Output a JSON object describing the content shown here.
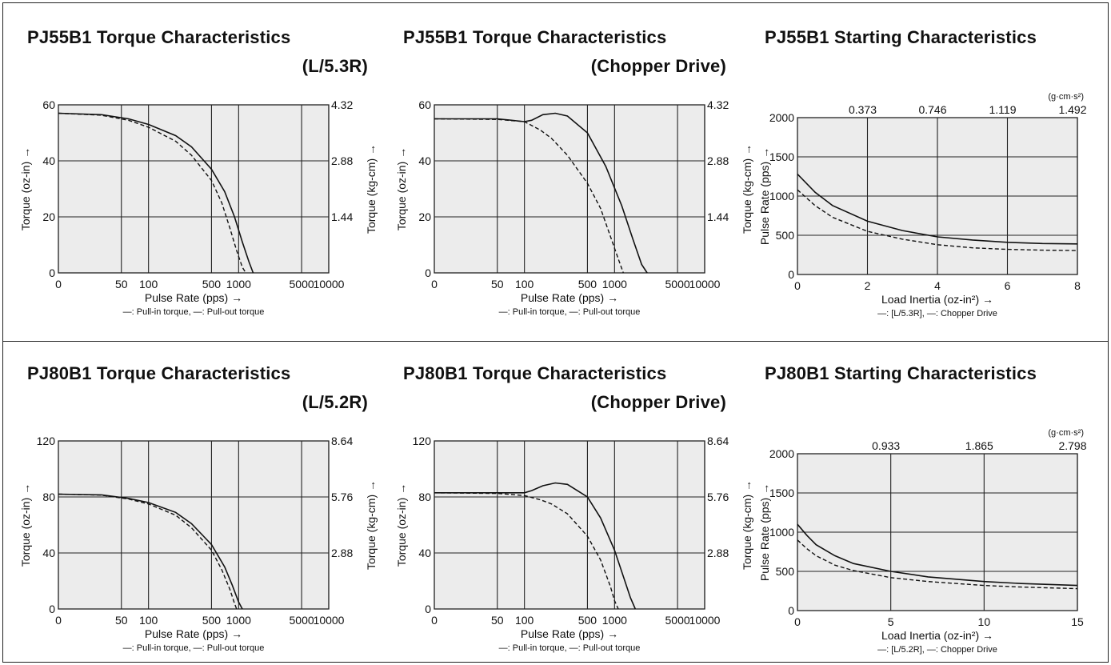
{
  "chart_data": [
    {
      "id": "pj55b1-lr",
      "type": "line",
      "title": "PJ55B1 Torque Characteristics",
      "subtitle": "(L/5.3R)",
      "xlabel": "Pulse Rate (pps) →",
      "ylabel": "Torque (oz-in) →",
      "y2label": "Torque (kg-cm) →",
      "xscale": "log",
      "xlim": [
        10,
        10000
      ],
      "ylim": [
        0,
        60
      ],
      "xgrid": [
        50,
        100,
        500,
        1000,
        5000,
        10000
      ],
      "xticklabels": [
        {
          "v": 10,
          "t": "0"
        },
        {
          "v": 50,
          "t": "50"
        },
        {
          "v": 100,
          "t": "100"
        },
        {
          "v": 500,
          "t": "500"
        },
        {
          "v": 1000,
          "t": "1000"
        },
        {
          "v": 5000,
          "t": "5000"
        },
        {
          "v": 10000,
          "t": "10000"
        }
      ],
      "yticks": [
        {
          "v": 0,
          "t": "0"
        },
        {
          "v": 20,
          "t": "20"
        },
        {
          "v": 40,
          "t": "40"
        },
        {
          "v": 60,
          "t": "60"
        }
      ],
      "y2ticks": [
        {
          "v": 20,
          "t": "1.44"
        },
        {
          "v": 40,
          "t": "2.88"
        },
        {
          "v": 60,
          "t": "4.32"
        }
      ],
      "legend": "—: Pull-in torque, —: Pull-out torque",
      "series": [
        {
          "name": "Pull-out torque",
          "style": "solid",
          "x": [
            10,
            30,
            60,
            100,
            200,
            300,
            500,
            700,
            900,
            1100,
            1300,
            1450
          ],
          "y": [
            57,
            56.5,
            55,
            53,
            49,
            45,
            37,
            29,
            20,
            11,
            4,
            0
          ]
        },
        {
          "name": "Pull-in torque",
          "style": "dashed",
          "x": [
            10,
            30,
            60,
            100,
            200,
            300,
            500,
            650,
            800,
            950,
            1100,
            1200
          ],
          "y": [
            57,
            56.3,
            54.5,
            52,
            47,
            42,
            33,
            25,
            16,
            8,
            2,
            0
          ]
        }
      ]
    },
    {
      "id": "pj55b1-chopper",
      "type": "line",
      "title": "PJ55B1 Torque Characteristics",
      "subtitle": "(Chopper Drive)",
      "xlabel": "Pulse Rate (pps) →",
      "ylabel": "Torque (oz-in) →",
      "y2label": "Torque (kg-cm) →",
      "xscale": "log",
      "xlim": [
        10,
        10000
      ],
      "ylim": [
        0,
        60
      ],
      "xgrid": [
        50,
        100,
        500,
        1000,
        5000,
        10000
      ],
      "xticklabels": [
        {
          "v": 10,
          "t": "0"
        },
        {
          "v": 50,
          "t": "50"
        },
        {
          "v": 100,
          "t": "100"
        },
        {
          "v": 500,
          "t": "500"
        },
        {
          "v": 1000,
          "t": "1000"
        },
        {
          "v": 5000,
          "t": "5000"
        },
        {
          "v": 10000,
          "t": "10000"
        }
      ],
      "yticks": [
        {
          "v": 0,
          "t": "0"
        },
        {
          "v": 20,
          "t": "20"
        },
        {
          "v": 40,
          "t": "40"
        },
        {
          "v": 60,
          "t": "60"
        }
      ],
      "y2ticks": [
        {
          "v": 20,
          "t": "1.44"
        },
        {
          "v": 40,
          "t": "2.88"
        },
        {
          "v": 60,
          "t": "4.32"
        }
      ],
      "legend": "—: Pull-in torque, —: Pull-out torque",
      "series": [
        {
          "name": "Pull-out torque",
          "style": "solid",
          "x": [
            10,
            50,
            100,
            120,
            160,
            220,
            300,
            500,
            800,
            1200,
            1600,
            2000,
            2300
          ],
          "y": [
            55,
            55,
            54,
            54.5,
            56.5,
            57,
            56,
            50,
            38,
            24,
            12,
            3,
            0
          ]
        },
        {
          "name": "Pull-in torque",
          "style": "dashed",
          "x": [
            10,
            50,
            100,
            150,
            200,
            300,
            500,
            700,
            900,
            1100,
            1250
          ],
          "y": [
            55,
            54.8,
            54,
            51,
            48,
            42,
            32,
            23,
            13,
            5,
            0
          ]
        }
      ]
    },
    {
      "id": "pj55b1-starting",
      "type": "line",
      "title": "PJ55B1 Starting Characteristics",
      "subtitle": "",
      "xlabel": "Load Inertia (oz-in²) →",
      "ylabel": "Pulse Rate (pps) →",
      "topunit": "(g·cm·s²)",
      "xscale": "linear",
      "xlim": [
        0,
        8
      ],
      "ylim": [
        0,
        2000
      ],
      "xgrid": [
        2,
        4,
        6,
        8
      ],
      "xticklabels": [
        {
          "v": 0,
          "t": "0"
        },
        {
          "v": 2,
          "t": "2"
        },
        {
          "v": 4,
          "t": "4"
        },
        {
          "v": 6,
          "t": "6"
        },
        {
          "v": 8,
          "t": "8"
        }
      ],
      "yticks": [
        {
          "v": 0,
          "t": "0"
        },
        {
          "v": 500,
          "t": "500"
        },
        {
          "v": 1000,
          "t": "1000"
        },
        {
          "v": 1500,
          "t": "1500"
        },
        {
          "v": 2000,
          "t": "2000"
        }
      ],
      "topticks": [
        {
          "v": 2,
          "t": "0.373"
        },
        {
          "v": 4,
          "t": "0.746"
        },
        {
          "v": 6,
          "t": "1.119"
        },
        {
          "v": 8,
          "t": "1.492"
        }
      ],
      "legend": "—: [L/5.3R], —: Chopper Drive",
      "series": [
        {
          "name": "Chopper Drive",
          "style": "solid",
          "x": [
            0,
            0.5,
            1,
            2,
            3,
            4,
            5,
            6,
            7,
            8
          ],
          "y": [
            1280,
            1050,
            880,
            680,
            560,
            480,
            440,
            410,
            395,
            390
          ]
        },
        {
          "name": "[L/5.3R]",
          "style": "dashed",
          "x": [
            0,
            0.5,
            1,
            2,
            3,
            4,
            5,
            6,
            7,
            8
          ],
          "y": [
            1080,
            880,
            730,
            550,
            450,
            380,
            340,
            320,
            310,
            305
          ]
        }
      ]
    },
    {
      "id": "pj80b1-lr",
      "type": "line",
      "title": "PJ80B1 Torque Characteristics",
      "subtitle": "(L/5.2R)",
      "xlabel": "Pulse Rate (pps) →",
      "ylabel": "Torque (oz-in) →",
      "y2label": "Torque (kg-cm) →",
      "xscale": "log",
      "xlim": [
        10,
        10000
      ],
      "ylim": [
        0,
        120
      ],
      "xgrid": [
        50,
        100,
        500,
        1000,
        5000,
        10000
      ],
      "xticklabels": [
        {
          "v": 10,
          "t": "0"
        },
        {
          "v": 50,
          "t": "50"
        },
        {
          "v": 100,
          "t": "100"
        },
        {
          "v": 500,
          "t": "500"
        },
        {
          "v": 1000,
          "t": "1000"
        },
        {
          "v": 5000,
          "t": "5000"
        },
        {
          "v": 10000,
          "t": "10000"
        }
      ],
      "yticks": [
        {
          "v": 0,
          "t": "0"
        },
        {
          "v": 40,
          "t": "40"
        },
        {
          "v": 80,
          "t": "80"
        },
        {
          "v": 120,
          "t": "120"
        }
      ],
      "y2ticks": [
        {
          "v": 40,
          "t": "2.88"
        },
        {
          "v": 80,
          "t": "5.76"
        },
        {
          "v": 120,
          "t": "8.64"
        }
      ],
      "legend": "—: Pull-in torque, —: Pull-out torque",
      "series": [
        {
          "name": "Pull-out torque",
          "style": "solid",
          "x": [
            10,
            30,
            60,
            100,
            200,
            300,
            500,
            700,
            850,
            1000,
            1100
          ],
          "y": [
            82,
            81.5,
            79,
            76,
            69,
            61,
            46,
            30,
            17,
            5,
            0
          ]
        },
        {
          "name": "Pull-in torque",
          "style": "dashed",
          "x": [
            10,
            30,
            60,
            100,
            200,
            300,
            500,
            650,
            800,
            900,
            950
          ],
          "y": [
            82,
            81.3,
            78.5,
            75,
            67,
            58,
            42,
            28,
            14,
            4,
            0
          ]
        }
      ]
    },
    {
      "id": "pj80b1-chopper",
      "type": "line",
      "title": "PJ80B1 Torque Characteristics",
      "subtitle": "(Chopper Drive)",
      "xlabel": "Pulse Rate (pps) →",
      "ylabel": "Torque (oz-in) →",
      "y2label": "Torque (kg-cm) →",
      "xscale": "log",
      "xlim": [
        10,
        10000
      ],
      "ylim": [
        0,
        120
      ],
      "xgrid": [
        50,
        100,
        500,
        1000,
        5000,
        10000
      ],
      "xticklabels": [
        {
          "v": 10,
          "t": "0"
        },
        {
          "v": 50,
          "t": "50"
        },
        {
          "v": 100,
          "t": "100"
        },
        {
          "v": 500,
          "t": "500"
        },
        {
          "v": 1000,
          "t": "1000"
        },
        {
          "v": 5000,
          "t": "5000"
        },
        {
          "v": 10000,
          "t": "10000"
        }
      ],
      "yticks": [
        {
          "v": 0,
          "t": "0"
        },
        {
          "v": 40,
          "t": "40"
        },
        {
          "v": 80,
          "t": "80"
        },
        {
          "v": 120,
          "t": "120"
        }
      ],
      "y2ticks": [
        {
          "v": 40,
          "t": "2.88"
        },
        {
          "v": 80,
          "t": "5.76"
        },
        {
          "v": 120,
          "t": "8.64"
        }
      ],
      "legend": "—: Pull-in torque, —: Pull-out torque",
      "series": [
        {
          "name": "Pull-out torque",
          "style": "solid",
          "x": [
            10,
            50,
            100,
            120,
            160,
            220,
            300,
            500,
            700,
            1000,
            1300,
            1500,
            1700
          ],
          "y": [
            83,
            83,
            83,
            84.5,
            88,
            90,
            89,
            80,
            65,
            42,
            20,
            8,
            0
          ]
        },
        {
          "name": "Pull-in torque",
          "style": "dashed",
          "x": [
            10,
            50,
            100,
            150,
            200,
            300,
            500,
            700,
            900,
            1000,
            1100
          ],
          "y": [
            83,
            82.5,
            81,
            78,
            75,
            68,
            52,
            35,
            16,
            6,
            0
          ]
        }
      ]
    },
    {
      "id": "pj80b1-starting",
      "type": "line",
      "title": "PJ80B1 Starting Characteristics",
      "subtitle": "",
      "xlabel": "Load Inertia (oz-in²) →",
      "ylabel": "Pulse Rate (pps) →",
      "topunit": "(g·cm·s²)",
      "xscale": "linear",
      "xlim": [
        0,
        15
      ],
      "ylim": [
        0,
        2000
      ],
      "xgrid": [
        5,
        10,
        15
      ],
      "xticklabels": [
        {
          "v": 0,
          "t": "0"
        },
        {
          "v": 5,
          "t": "5"
        },
        {
          "v": 10,
          "t": "10"
        },
        {
          "v": 15,
          "t": "15"
        }
      ],
      "yticks": [
        {
          "v": 0,
          "t": "0"
        },
        {
          "v": 500,
          "t": "500"
        },
        {
          "v": 1000,
          "t": "1000"
        },
        {
          "v": 1500,
          "t": "1500"
        },
        {
          "v": 2000,
          "t": "2000"
        }
      ],
      "topticks": [
        {
          "v": 5,
          "t": "0.933"
        },
        {
          "v": 10,
          "t": "1.865"
        },
        {
          "v": 15,
          "t": "2.798"
        }
      ],
      "legend": "—: [L/5.2R], —: Chopper Drive",
      "series": [
        {
          "name": "Chopper Drive",
          "style": "solid",
          "x": [
            0,
            0.5,
            1,
            2,
            3,
            5,
            7,
            10,
            12,
            15
          ],
          "y": [
            1100,
            960,
            840,
            700,
            600,
            500,
            430,
            370,
            345,
            320
          ]
        },
        {
          "name": "[L/5.2R]",
          "style": "dashed",
          "x": [
            0,
            0.5,
            1,
            2,
            3,
            5,
            7,
            10,
            12,
            15
          ],
          "y": [
            900,
            790,
            700,
            580,
            510,
            420,
            370,
            320,
            300,
            280
          ]
        }
      ]
    }
  ]
}
